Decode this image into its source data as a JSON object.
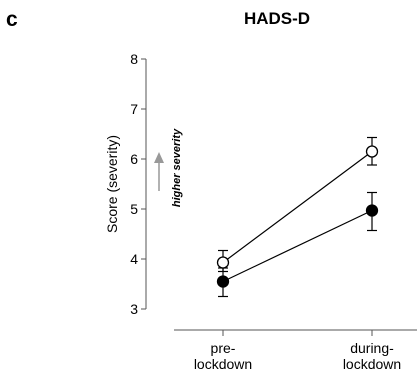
{
  "panel_letter": "c",
  "chart_data": {
    "type": "line",
    "title": "HADS-D",
    "xlabel": "",
    "ylabel": "Score (severity)",
    "categories": [
      "pre-\nlockdown",
      "during-\nlockdown"
    ],
    "ylim": [
      3,
      8
    ],
    "yticks": [
      3,
      4,
      5,
      6,
      7,
      8
    ],
    "grid": false,
    "annotation": {
      "text": "higher severity",
      "arrow_color": "#999999"
    },
    "series": [
      {
        "marker": "open-circle",
        "color": "#000000",
        "values": [
          3.93,
          6.15
        ],
        "error_low": [
          3.75,
          5.88
        ],
        "error_high": [
          4.17,
          6.43
        ]
      },
      {
        "marker": "filled-circle",
        "color": "#000000",
        "values": [
          3.55,
          4.97
        ],
        "error_low": [
          3.25,
          4.57
        ],
        "error_high": [
          3.82,
          5.33
        ]
      }
    ]
  }
}
